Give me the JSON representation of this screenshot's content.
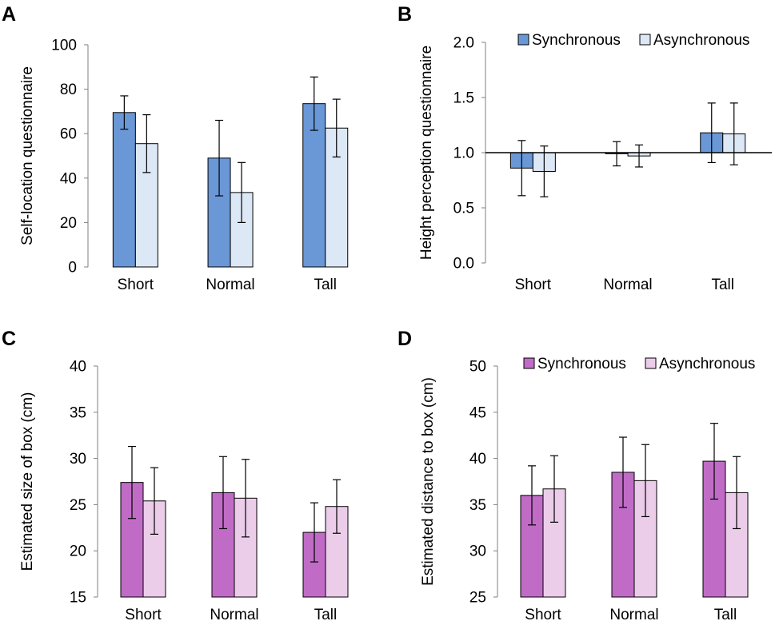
{
  "chart_data": [
    {
      "panel": "A",
      "type": "bar",
      "categories": [
        "Short",
        "Normal",
        "Tall"
      ],
      "ylabel": "Self-location questionnaire",
      "ylim": [
        0,
        100
      ],
      "yticks": [
        0,
        20,
        40,
        60,
        80,
        100
      ],
      "baseline": 0,
      "series": [
        {
          "name": "Synchronous",
          "color": "#6a97d6",
          "values": [
            69.5,
            49,
            73.5
          ],
          "errors": [
            7.5,
            17,
            12
          ]
        },
        {
          "name": "Asynchronous",
          "color": "#dde8f6",
          "values": [
            55.5,
            33.5,
            62.5
          ],
          "errors": [
            13,
            13.5,
            13
          ]
        }
      ],
      "legend": null
    },
    {
      "panel": "B",
      "type": "bar",
      "categories": [
        "Short",
        "Normal",
        "Tall"
      ],
      "ylabel": "Height perception questionnaire",
      "ylim": [
        0,
        2
      ],
      "yticks": [
        0.0,
        0.5,
        1.0,
        1.5,
        2.0
      ],
      "ytick_labels": [
        "0.0",
        "0.5",
        "1.0",
        "1.5",
        "2.0"
      ],
      "baseline": 1.0,
      "series": [
        {
          "name": "Synchronous",
          "color": "#6a97d6",
          "values": [
            0.86,
            0.99,
            1.18
          ],
          "errors": [
            0.25,
            0.11,
            0.27
          ]
        },
        {
          "name": "Asynchronous",
          "color": "#dde8f6",
          "values": [
            0.83,
            0.97,
            1.17
          ],
          "errors": [
            0.23,
            0.1,
            0.28
          ]
        }
      ],
      "legend": "top-right"
    },
    {
      "panel": "C",
      "type": "bar",
      "categories": [
        "Short",
        "Normal",
        "Tall"
      ],
      "ylabel": "Estimated size of box (cm)",
      "ylim": [
        15,
        40
      ],
      "yticks": [
        15,
        20,
        25,
        30,
        35,
        40
      ],
      "baseline": 15,
      "series": [
        {
          "name": "Synchronous",
          "color": "#c06cc6",
          "values": [
            27.4,
            26.3,
            22.0
          ],
          "errors": [
            3.9,
            3.9,
            3.2
          ]
        },
        {
          "name": "Asynchronous",
          "color": "#ebcdea",
          "values": [
            25.4,
            25.7,
            24.8
          ],
          "errors": [
            3.6,
            4.2,
            2.9
          ]
        }
      ],
      "legend": null
    },
    {
      "panel": "D",
      "type": "bar",
      "categories": [
        "Short",
        "Normal",
        "Tall"
      ],
      "ylabel": "Estimated distance to box (cm)",
      "ylim": [
        25,
        50
      ],
      "yticks": [
        25,
        30,
        35,
        40,
        45,
        50
      ],
      "baseline": 25,
      "series": [
        {
          "name": "Synchronous",
          "color": "#c06cc6",
          "values": [
            36.0,
            38.5,
            39.7
          ],
          "errors": [
            3.2,
            3.8,
            4.1
          ]
        },
        {
          "name": "Asynchronous",
          "color": "#ebcdea",
          "values": [
            36.7,
            37.6,
            36.3
          ],
          "errors": [
            3.6,
            3.9,
            3.9
          ]
        }
      ],
      "legend": "top-right"
    }
  ]
}
